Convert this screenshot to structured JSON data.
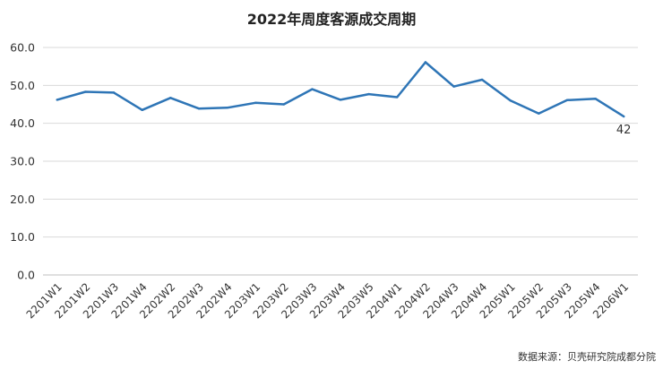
{
  "chart_data": {
    "type": "line",
    "title": "2022年周度客源成交周期",
    "source": "数据来源：贝壳研究院成都分院",
    "categories": [
      "2201W1",
      "2201W2",
      "2201W3",
      "2201W4",
      "2202W2",
      "2202W3",
      "2202W4",
      "2203W1",
      "2203W2",
      "2203W3",
      "2203W4",
      "2203W5",
      "2204W1",
      "2204W2",
      "2204W3",
      "2204W4",
      "2205W1",
      "2205W2",
      "2205W3",
      "2205W4",
      "2206W1"
    ],
    "series": [
      {
        "values": [
          46.2,
          48.3,
          48.1,
          43.5,
          46.7,
          43.9,
          44.1,
          45.4,
          45.0,
          49.0,
          46.2,
          47.7,
          46.9,
          56.1,
          49.7,
          51.5,
          46.0,
          42.6,
          46.1,
          46.5,
          41.8
        ]
      }
    ],
    "data_labels": [
      {
        "index": 20,
        "text": "42"
      }
    ],
    "yticks": [
      "0.0",
      "10.0",
      "20.0",
      "30.0",
      "40.0",
      "50.0",
      "60.0"
    ],
    "ylim": [
      0,
      60
    ],
    "grid": true,
    "line_color": "#2e75b6",
    "grid_color": "#d9d9d9"
  }
}
